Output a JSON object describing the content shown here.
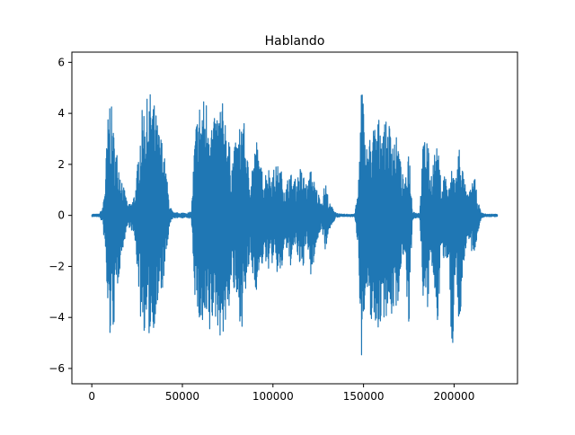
{
  "chart_data": {
    "type": "line",
    "title": "Hablando",
    "xlabel": "",
    "ylabel": "",
    "xlim": [
      -11000,
      235000
    ],
    "ylim": [
      -6.6,
      6.4
    ],
    "x_ticks": [
      0,
      50000,
      100000,
      150000,
      200000
    ],
    "x_tick_labels": [
      "0",
      "50000",
      "100000",
      "150000",
      "200000"
    ],
    "y_ticks": [
      -6,
      -4,
      -2,
      0,
      2,
      4,
      6
    ],
    "y_tick_labels": [
      "−6",
      "−4",
      "−2",
      "0",
      "2",
      "4",
      "6"
    ],
    "grid": false,
    "legend": "none",
    "series": [
      {
        "color": "#1f77b4",
        "x_range": [
          0,
          224000
        ],
        "envelope": {
          "x": [
            0,
            4000,
            6000,
            7500,
            8500,
            10000,
            11000,
            12500,
            14000,
            16000,
            18000,
            20000,
            22000,
            24000,
            25500,
            27000,
            29000,
            31000,
            33000,
            35000,
            37000,
            39000,
            41000,
            43000,
            45000,
            47000,
            49000,
            51000,
            53000,
            55000,
            57000,
            59000,
            61000,
            63000,
            65000,
            67000,
            69000,
            71000,
            73000,
            75000,
            77000,
            79000,
            81000,
            83000,
            85000,
            87000,
            89000,
            91000,
            93000,
            95000,
            97000,
            99000,
            101000,
            103000,
            105000,
            107000,
            109000,
            111000,
            113000,
            115000,
            117000,
            119000,
            121000,
            123000,
            125000,
            127000,
            129000,
            131000,
            133000,
            135000,
            137000,
            139000,
            141000,
            143000,
            145000,
            147000,
            149000,
            151000,
            153000,
            155000,
            157000,
            159000,
            161000,
            163000,
            165000,
            167000,
            169000,
            171000,
            173000,
            175000,
            177000,
            179000,
            181000,
            183000,
            185000,
            187000,
            189000,
            191000,
            193000,
            195000,
            197000,
            199000,
            201000,
            203000,
            205000,
            207000,
            209000,
            211000,
            213000,
            215000,
            217000,
            219000,
            221000,
            224000
          ],
          "upper": [
            0.05,
            0.05,
            0.3,
            1.5,
            3.5,
            4.9,
            4.2,
            3.0,
            2.5,
            1.8,
            1.0,
            0.4,
            0.5,
            1.0,
            2.2,
            3.9,
            4.5,
            4.6,
            5.0,
            4.2,
            3.4,
            3.0,
            1.8,
            0.4,
            0.1,
            0.1,
            0.1,
            0.1,
            0.1,
            0.15,
            3.4,
            4.5,
            4.6,
            4.7,
            4.5,
            3.6,
            4.2,
            4.5,
            4.4,
            3.5,
            2.1,
            2.8,
            3.2,
            4.3,
            3.0,
            1.5,
            2.3,
            3.0,
            2.0,
            1.6,
            2.0,
            1.7,
            1.9,
            2.0,
            1.7,
            1.0,
            1.8,
            1.5,
            1.4,
            1.9,
            1.6,
            1.2,
            1.9,
            1.3,
            0.9,
            0.6,
            1.4,
            0.5,
            0.3,
            0.1,
            0.05,
            0.05,
            0.05,
            0.05,
            0.05,
            0.9,
            5.9,
            2.7,
            3.0,
            3.5,
            3.7,
            3.9,
            3.8,
            3.6,
            3.7,
            3.2,
            3.0,
            1.8,
            1.2,
            3.0,
            0.2,
            0.1,
            0.1,
            3.0,
            3.4,
            1.5,
            2.5,
            2.7,
            1.2,
            1.8,
            1.0,
            2.0,
            1.6,
            3.0,
            1.7,
            0.8,
            1.0,
            1.7,
            0.6,
            0.1,
            0.06,
            0.05,
            0.05,
            0.05
          ],
          "lower": [
            -0.05,
            -0.05,
            -0.3,
            -1.6,
            -3.8,
            -5.0,
            -4.6,
            -4.4,
            -3.0,
            -1.8,
            -1.0,
            -0.4,
            -0.6,
            -1.2,
            -2.5,
            -4.2,
            -4.6,
            -4.9,
            -4.7,
            -4.2,
            -3.6,
            -3.0,
            -1.8,
            -0.4,
            -0.1,
            -0.1,
            -0.1,
            -0.1,
            -0.1,
            -0.15,
            -3.3,
            -4.3,
            -4.8,
            -4.7,
            -5.0,
            -4.1,
            -4.3,
            -4.8,
            -4.7,
            -4.3,
            -2.6,
            -3.4,
            -4.0,
            -4.4,
            -3.2,
            -1.9,
            -2.5,
            -3.0,
            -2.2,
            -1.8,
            -2.2,
            -1.9,
            -2.0,
            -2.5,
            -2.2,
            -1.1,
            -2.2,
            -1.6,
            -1.3,
            -2.5,
            -1.9,
            -1.2,
            -2.6,
            -1.6,
            -0.9,
            -0.5,
            -1.4,
            -0.6,
            -0.3,
            -0.1,
            -0.05,
            -0.05,
            -0.05,
            -0.05,
            -0.05,
            -1.2,
            -5.7,
            -3.5,
            -4.0,
            -4.2,
            -4.6,
            -4.4,
            -4.1,
            -3.9,
            -4.2,
            -3.7,
            -3.5,
            -1.8,
            -1.4,
            -5.2,
            -0.2,
            -0.1,
            -0.1,
            -3.4,
            -4.4,
            -1.8,
            -3.0,
            -4.3,
            -1.3,
            -2.2,
            -1.5,
            -6.1,
            -1.9,
            -4.9,
            -2.1,
            -1.0,
            -1.3,
            -1.9,
            -0.7,
            -0.1,
            -0.06,
            -0.05,
            -0.05,
            -0.05
          ]
        }
      }
    ]
  }
}
